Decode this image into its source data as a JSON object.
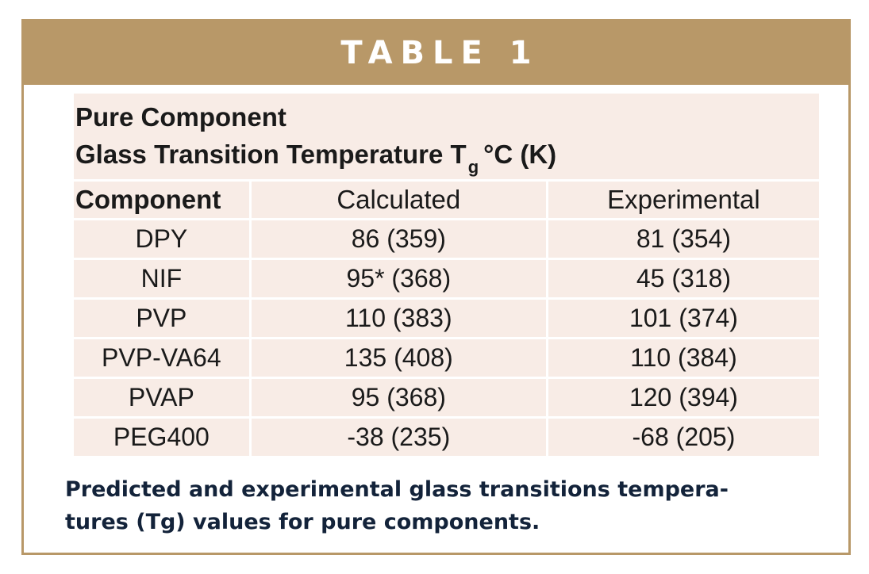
{
  "banner": {
    "label": "TABLE 1"
  },
  "table": {
    "title_line1": "Pure Component",
    "title_line2_main": "Glass Transition Temperature T",
    "title_line2_sub": "g",
    "title_line2_unit": "°C  (K)",
    "headers": [
      "Component",
      "Calculated",
      "Experimental"
    ],
    "rows": [
      [
        "DPY",
        "86 (359)",
        "81 (354)"
      ],
      [
        "NIF",
        "95*  (368)",
        "45 (318)"
      ],
      [
        "PVP",
        "110 (383)",
        "101 (374)"
      ],
      [
        "PVP-VA64",
        "135 (408)",
        "110 (384)"
      ],
      [
        "PVAP",
        "95 (368)",
        "120 (394)"
      ],
      [
        "PEG400",
        "-38 (235)",
        "-68 (205)"
      ]
    ]
  },
  "caption": {
    "line1": "Predicted and experimental glass transitions tempera-",
    "line2": "tures (Tg) values for pure components."
  },
  "colors": {
    "banner": "#b89868",
    "cell_background": "#f8ece6",
    "caption_text": "#13233a"
  }
}
